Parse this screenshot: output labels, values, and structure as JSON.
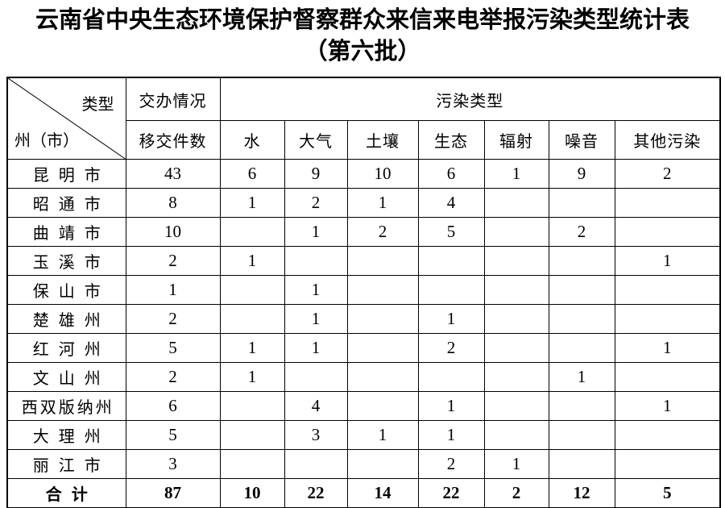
{
  "title": {
    "line1": "云南省中央生态环境保护督察群众来信来电举报污染类型统计表",
    "line2": "（第六批）"
  },
  "table": {
    "corner": {
      "top_right": "类型",
      "bottom_left": "州（市）"
    },
    "group_headers": {
      "handling": "交办情况",
      "pollution": "污染类型"
    },
    "sub_headers": [
      "移交件数",
      "水",
      "大气",
      "土壤",
      "生态",
      "辐射",
      "噪音",
      "其他污染"
    ],
    "rows": [
      {
        "region": "昆明市",
        "values": [
          "43",
          "6",
          "9",
          "10",
          "6",
          "1",
          "9",
          "2"
        ]
      },
      {
        "region": "昭通市",
        "values": [
          "8",
          "1",
          "2",
          "1",
          "4",
          "",
          "",
          ""
        ]
      },
      {
        "region": "曲靖市",
        "values": [
          "10",
          "",
          "1",
          "2",
          "5",
          "",
          "2",
          ""
        ]
      },
      {
        "region": "玉溪市",
        "values": [
          "2",
          "1",
          "",
          "",
          "",
          "",
          "",
          "1"
        ]
      },
      {
        "region": "保山市",
        "values": [
          "1",
          "",
          "1",
          "",
          "",
          "",
          "",
          ""
        ]
      },
      {
        "region": "楚雄州",
        "values": [
          "2",
          "",
          "1",
          "",
          "1",
          "",
          "",
          ""
        ]
      },
      {
        "region": "红河州",
        "values": [
          "5",
          "1",
          "1",
          "",
          "2",
          "",
          "",
          "1"
        ]
      },
      {
        "region": "文山州",
        "values": [
          "2",
          "1",
          "",
          "",
          "",
          "",
          "1",
          ""
        ]
      },
      {
        "region": "西双版纳州",
        "values": [
          "6",
          "",
          "4",
          "",
          "1",
          "",
          "",
          "1"
        ]
      },
      {
        "region": "大理州",
        "values": [
          "5",
          "",
          "3",
          "1",
          "1",
          "",
          "",
          ""
        ]
      },
      {
        "region": "丽江市",
        "values": [
          "3",
          "",
          "",
          "",
          "2",
          "1",
          "",
          ""
        ]
      }
    ],
    "total_row": {
      "region": "合计",
      "values": [
        "87",
        "10",
        "22",
        "14",
        "22",
        "2",
        "12",
        "5"
      ]
    }
  },
  "colors": {
    "ink": "#000000",
    "paper": "#ffffff"
  }
}
